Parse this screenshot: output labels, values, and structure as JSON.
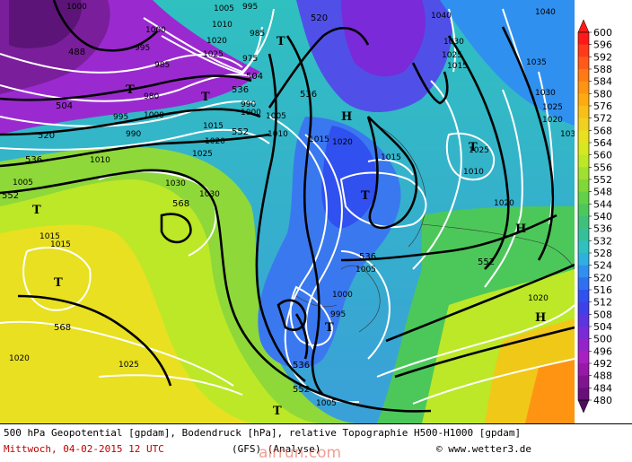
{
  "footer": {
    "line1": "500 hPa Geopotential [gpdam], Bodendruck [hPa], relative Topographie H500-H1000 [gpdam]",
    "date": "Mittwoch, 04-02-2015   12 UTC",
    "model": "(GFS)   (Analyse)",
    "credit": "© www.wetter3.de",
    "watermark": "alrrun.com"
  },
  "legend": {
    "values": [
      "600",
      "596",
      "592",
      "588",
      "584",
      "580",
      "576",
      "572",
      "568",
      "564",
      "560",
      "556",
      "552",
      "548",
      "544",
      "540",
      "536",
      "532",
      "528",
      "524",
      "520",
      "516",
      "512",
      "508",
      "504",
      "500",
      "496",
      "492",
      "488",
      "484",
      "480"
    ],
    "colors": [
      "#ff1a1a",
      "#ff3a1a",
      "#ff5a1a",
      "#ff7a14",
      "#ff9412",
      "#ffab10",
      "#f7c018",
      "#f0d020",
      "#e8e020",
      "#d6e820",
      "#bce828",
      "#9fe030",
      "#80d838",
      "#62d048",
      "#4cc85a",
      "#40c07a",
      "#36c09a",
      "#30c0c0",
      "#30b0e0",
      "#3090f0",
      "#3070f0",
      "#3050f0",
      "#4040e8",
      "#5c34e0",
      "#7a2ad8",
      "#9424c8",
      "#a820c0",
      "#9818a8",
      "#801490",
      "#681078",
      "#500c60"
    ]
  },
  "labels": {
    "geo": [
      "488",
      "504",
      "520",
      "536",
      "552",
      "568",
      "568",
      "552",
      "536",
      "552",
      "536",
      "520",
      "504",
      "536",
      "552",
      "536",
      "520"
    ],
    "press": [
      "1000",
      "1000",
      "995",
      "985",
      "980",
      "1000",
      "995",
      "990",
      "1005",
      "995",
      "1010",
      "1025",
      "1020",
      "985",
      "975",
      "990",
      "1000",
      "1005",
      "1010",
      "1010",
      "1015",
      "1015",
      "1020",
      "1025",
      "1030",
      "1030",
      "1015",
      "1015",
      "1020",
      "1015",
      "1005",
      "995",
      "1000",
      "1005",
      "1025",
      "1020",
      "1005",
      "1040",
      "1040",
      "1030",
      "1025",
      "1015",
      "1025",
      "1010",
      "1035",
      "1030",
      "1025",
      "1020",
      "1030",
      "1020",
      "1020"
    ],
    "pressure_systems": [
      "T",
      "T",
      "T",
      "T",
      "T",
      "T",
      "T",
      "T",
      "H",
      "H",
      "H",
      "T"
    ]
  }
}
